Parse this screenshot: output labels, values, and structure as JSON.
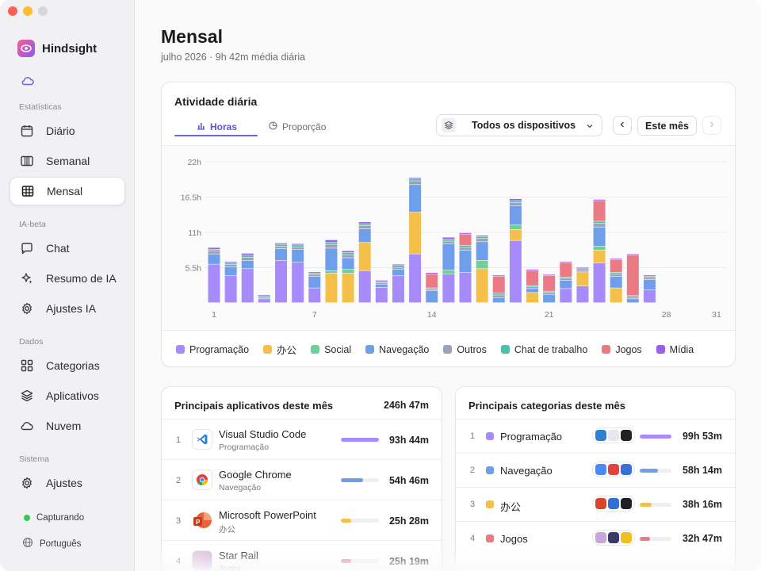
{
  "app": {
    "name": "Hindsight"
  },
  "sidebar": {
    "groups": [
      {
        "title": "Estatísticas",
        "items": [
          {
            "label": "Diário",
            "icon": "calendar-icon"
          },
          {
            "label": "Semanal",
            "icon": "week-columns-icon"
          },
          {
            "label": "Mensal",
            "icon": "month-grid-icon",
            "active": true
          }
        ]
      },
      {
        "title": "IA-beta",
        "items": [
          {
            "label": "Chat",
            "icon": "chat-bubble-icon"
          },
          {
            "label": "Resumo de IA",
            "icon": "sparkles-icon"
          },
          {
            "label": "Ajustes IA",
            "icon": "gear-icon"
          }
        ]
      },
      {
        "title": "Dados",
        "items": [
          {
            "label": "Categorias",
            "icon": "grid-icon"
          },
          {
            "label": "Aplicativos",
            "icon": "layers-icon"
          },
          {
            "label": "Nuvem",
            "icon": "cloud-icon"
          }
        ]
      },
      {
        "title": "Sistema",
        "items": [
          {
            "label": "Ajustes",
            "icon": "gear-icon"
          }
        ]
      }
    ],
    "status": "Capturando",
    "language": "Português"
  },
  "header": {
    "title": "Mensal",
    "subtitle": "julho 2026 · 9h 42m média diária"
  },
  "activity": {
    "title": "Atividade diária",
    "tabs": [
      {
        "label": "Horas",
        "active": true
      },
      {
        "label": "Proporção",
        "active": false
      }
    ],
    "device_select": "Todos os dispositivos",
    "period_button": "Este mês"
  },
  "chart_data": {
    "type": "bar",
    "stacked": true,
    "y_ticks": [
      "22h",
      "16.5h",
      "11h",
      "5.5h"
    ],
    "ylim": [
      0,
      22
    ],
    "x_tick_labels": [
      {
        "day": 1,
        "label": "1"
      },
      {
        "day": 7,
        "label": "7"
      },
      {
        "day": 14,
        "label": "14"
      },
      {
        "day": 21,
        "label": "21"
      },
      {
        "day": 28,
        "label": "28"
      },
      {
        "day": 31,
        "label": "31"
      }
    ],
    "categories": [
      1,
      2,
      3,
      4,
      5,
      6,
      7,
      8,
      9,
      10,
      11,
      12,
      13,
      14,
      15,
      16,
      17,
      18,
      19,
      20,
      21,
      22,
      23,
      24,
      25,
      26,
      27,
      28,
      29,
      30,
      31
    ],
    "grid": true,
    "legend_position": "bottom",
    "series": [
      {
        "name": "Programação",
        "color": "#a78bfa",
        "values": [
          6.0,
          4.2,
          5.3,
          0.6,
          6.6,
          6.3,
          2.3,
          0,
          0,
          5.0,
          2.4,
          4.2,
          7.6,
          0,
          4.5,
          4.7,
          0,
          0,
          9.7,
          0,
          0,
          2.2,
          2.6,
          6.2,
          0,
          0,
          2.0,
          0,
          0,
          0,
          0
        ]
      },
      {
        "name": "办公",
        "color": "#f4c04a",
        "values": [
          0,
          0,
          0,
          0,
          0,
          0,
          0,
          4.6,
          4.6,
          4.4,
          0,
          0,
          6.5,
          0,
          0,
          0,
          5.3,
          0,
          1.7,
          1.6,
          0,
          0,
          2.2,
          2.0,
          2.3,
          0,
          0,
          0,
          0,
          0,
          0
        ]
      },
      {
        "name": "Social",
        "color": "#6fcf97",
        "values": [
          0,
          0,
          0,
          0,
          0,
          0,
          0,
          0.4,
          0.6,
          0,
          0,
          0,
          0,
          0,
          0.6,
          0,
          1.3,
          0,
          0.7,
          0,
          0,
          0,
          0,
          0.6,
          0,
          0,
          0,
          0,
          0,
          0,
          0
        ]
      },
      {
        "name": "Navegação",
        "color": "#6f9eea",
        "values": [
          1.6,
          1.4,
          1.3,
          0,
          1.8,
          2.0,
          1.8,
          3.5,
          1.8,
          2.1,
          0.5,
          1.0,
          4.3,
          1.9,
          4.1,
          3.5,
          2.9,
          0.8,
          3.0,
          0.6,
          1.3,
          1.3,
          0,
          3.0,
          1.8,
          0.6,
          1.6,
          0,
          0,
          0,
          0
        ]
      },
      {
        "name": "Outros",
        "color": "#9aa3b5",
        "values": [
          0.5,
          0.4,
          0.5,
          0.2,
          0.4,
          0.4,
          0.3,
          0.6,
          0.5,
          0.5,
          0.2,
          0.3,
          0.6,
          0.2,
          0.4,
          0.4,
          0.5,
          0.4,
          0.5,
          0.3,
          0.3,
          0.3,
          0.3,
          0.6,
          0.4,
          0.3,
          0.3,
          0,
          0,
          0,
          0
        ]
      },
      {
        "name": "Chat de trabalho",
        "color": "#4fbfa8",
        "values": [
          0.2,
          0.2,
          0.3,
          0.2,
          0.3,
          0.3,
          0.2,
          0.3,
          0.3,
          0.3,
          0.2,
          0.3,
          0.3,
          0.2,
          0.3,
          0.3,
          0.3,
          0.3,
          0.3,
          0.2,
          0.2,
          0.2,
          0.2,
          0.3,
          0.2,
          0.2,
          0.2,
          0,
          0,
          0,
          0
        ]
      },
      {
        "name": "Jogos",
        "color": "#ea7a84",
        "values": [
          0,
          0,
          0,
          0,
          0,
          0,
          0,
          0,
          0,
          0,
          0,
          0,
          0,
          2.2,
          0,
          1.8,
          0,
          2.6,
          0,
          2.3,
          2.4,
          2.2,
          0,
          3.2,
          2.0,
          6.3,
          0,
          0,
          0,
          0,
          0
        ]
      },
      {
        "name": "Mídia",
        "color": "#9b5cf0",
        "values": [
          0.3,
          0.2,
          0.3,
          0.2,
          0.2,
          0.2,
          0.2,
          0.4,
          0.3,
          0.3,
          0.2,
          0.2,
          0.2,
          0.2,
          0.3,
          0.2,
          0.2,
          0.2,
          0.3,
          0.2,
          0.2,
          0.2,
          0.2,
          0.2,
          0.2,
          0.2,
          0.2,
          0,
          0,
          0,
          0
        ]
      }
    ]
  },
  "top_apps": {
    "title": "Principais aplicativos deste mês",
    "total": "246h 47m",
    "items": [
      {
        "rank": "1",
        "name": "Visual Studio Code",
        "category": "Programação",
        "time": "93h 44m",
        "share": 1.0,
        "color": "#a78bfa",
        "icon": "vscode-icon"
      },
      {
        "rank": "2",
        "name": "Google Chrome",
        "category": "Navegação",
        "time": "54h 46m",
        "share": 0.58,
        "color": "#6f9eea",
        "icon": "chrome-icon"
      },
      {
        "rank": "3",
        "name": "Microsoft PowerPoint",
        "category": "办公",
        "time": "25h 28m",
        "share": 0.27,
        "color": "#f4c04a",
        "icon": "powerpoint-icon"
      },
      {
        "rank": "4",
        "name": "Star Rail",
        "category": "Jogos",
        "time": "25h 19m",
        "share": 0.27,
        "color": "#ea7a84",
        "icon": "game-icon"
      }
    ]
  },
  "top_categories": {
    "title": "Principais categorias deste mês",
    "items": [
      {
        "rank": "1",
        "name": "Programação",
        "time": "99h 53m",
        "share": 1.0,
        "color": "#a78bfa",
        "app_icons": [
          "#2f7fd6",
          "#e8e8ea",
          "#222222"
        ]
      },
      {
        "rank": "2",
        "name": "Navegação",
        "time": "58h 14m",
        "share": 0.58,
        "color": "#6f9eea",
        "app_icons": [
          "#4a8af4",
          "#e2423f",
          "#3a6fd8"
        ]
      },
      {
        "rank": "3",
        "name": "办公",
        "time": "38h 16m",
        "share": 0.38,
        "color": "#f4c04a",
        "app_icons": [
          "#d9452b",
          "#2f6fd6",
          "#1f1f24"
        ]
      },
      {
        "rank": "4",
        "name": "Jogos",
        "time": "32h 47m",
        "share": 0.33,
        "color": "#ea7a84",
        "app_icons": [
          "#c9a6d9",
          "#3a3a6a",
          "#f0c020"
        ]
      }
    ]
  }
}
